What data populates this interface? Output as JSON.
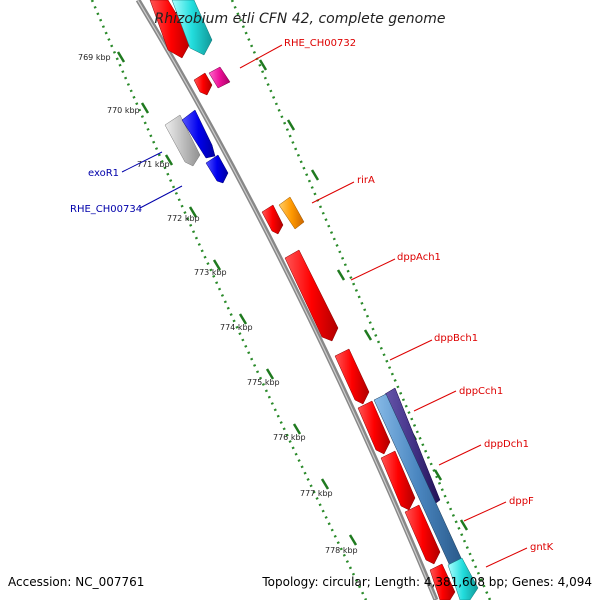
{
  "header": {
    "title": "Rhizobium etli CFN 42, complete genome"
  },
  "footer": {
    "accession": "Accession: NC_007761",
    "summary": "Topology: circular; Length: 4,381,608 bp; Genes: 4,094"
  },
  "ticks": [
    "769 kbp",
    "770 kbp",
    "771 kbp",
    "772 kbp",
    "773 kbp",
    "774 kbp",
    "775 kbp",
    "776 kbp",
    "777 kbp",
    "778 kbp"
  ],
  "genes": [
    {
      "name": "RHE_CH00732",
      "color": "#dd0000"
    },
    {
      "name": "exoR1",
      "color": "#0000aa"
    },
    {
      "name": "RHE_CH00734",
      "color": "#0000aa"
    },
    {
      "name": "rirA",
      "color": "#dd0000"
    },
    {
      "name": "dppAch1",
      "color": "#dd0000"
    },
    {
      "name": "dppBch1",
      "color": "#dd0000"
    },
    {
      "name": "dppCch1",
      "color": "#dd0000"
    },
    {
      "name": "dppDch1",
      "color": "#dd0000"
    },
    {
      "name": "dppF",
      "color": "#dd0000"
    },
    {
      "name": "gntK",
      "color": "#dd0000"
    }
  ],
  "colors": {
    "backbone": "#888888",
    "ticks": "#2a8a2a",
    "feature_red": "#ff0000",
    "feature_blue": "#0000ee",
    "feature_cyan": "#22dddd",
    "feature_orange": "#ff9900",
    "feature_magenta": "#ee1199",
    "feature_grey": "#c0c0c0",
    "feature_navy": "#443388",
    "feature_steel": "#4a86c0"
  }
}
